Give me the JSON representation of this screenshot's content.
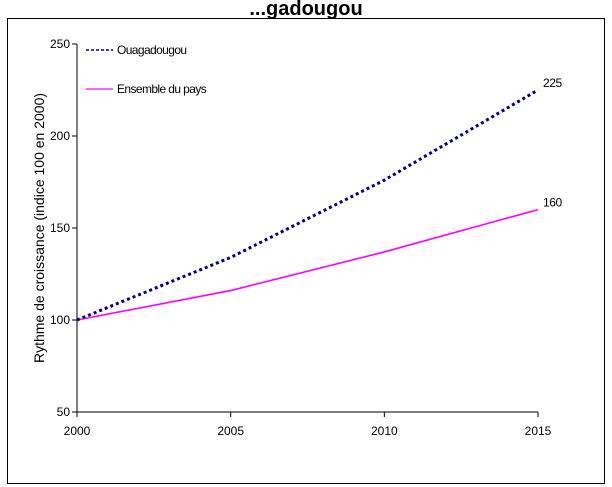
{
  "chart_data": {
    "type": "line",
    "title": "",
    "title_partial": "...gadougou",
    "xlabel": "",
    "ylabel": "Rythme de croissance (indice 100 en 2000)",
    "x": [
      2000,
      2005,
      2010,
      2015
    ],
    "x_tick_labels": [
      "2000",
      "2005",
      "2010",
      "2015"
    ],
    "y_ticks": [
      50,
      100,
      150,
      200,
      250
    ],
    "y_tick_labels": [
      "50",
      "100",
      "150",
      "200",
      "250"
    ],
    "xlim": [
      2000,
      2015
    ],
    "ylim": [
      50,
      250
    ],
    "grid": false,
    "legend_position": "top-left",
    "series": [
      {
        "name": "Ouagadougou",
        "values": [
          100,
          134,
          176,
          225
        ],
        "color": "#000080",
        "style": "dotted",
        "end_label": "225"
      },
      {
        "name": "Ensemble du pays",
        "values": [
          100,
          116,
          137,
          160
        ],
        "color": "#ff00ff",
        "style": "solid",
        "end_label": "160"
      }
    ]
  }
}
